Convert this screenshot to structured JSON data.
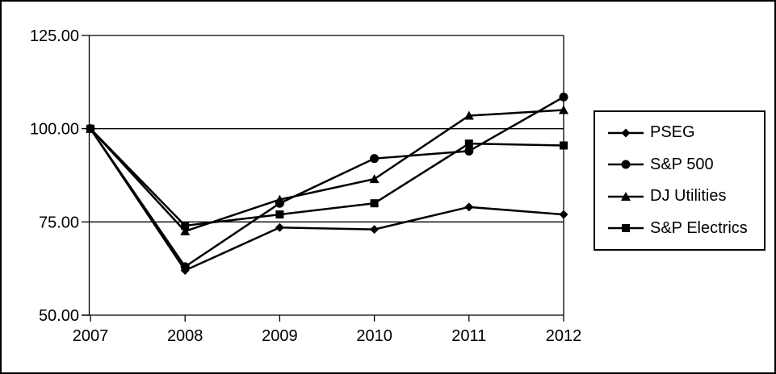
{
  "chart_data": {
    "type": "line",
    "title": "",
    "xlabel": "",
    "ylabel": "",
    "x_tick_labels": [
      "2007",
      "2008",
      "2009",
      "2010",
      "2011",
      "2012"
    ],
    "y_tick_labels": [
      {
        "value": 125,
        "label": "125.00"
      },
      {
        "value": 100,
        "label": "100.00"
      },
      {
        "value": 75,
        "label": "75.00"
      },
      {
        "value": 50,
        "label": "50.00"
      }
    ],
    "ylim": [
      50,
      125
    ],
    "gridline_values": [
      125,
      100,
      75
    ],
    "grid": "horizontal",
    "legend_position": "right-outside",
    "line_color": "#000000",
    "background_color": "#ffffff",
    "series": [
      {
        "name": "PSEG",
        "marker": "diamond",
        "values": [
          100,
          62,
          73.5,
          73,
          79,
          77
        ]
      },
      {
        "name": "S&P 500",
        "marker": "circle",
        "values": [
          100,
          63,
          80,
          92,
          94,
          108.5
        ]
      },
      {
        "name": "DJ Utilities",
        "marker": "triangle",
        "values": [
          100,
          72.5,
          81,
          86.5,
          103.5,
          105
        ]
      },
      {
        "name": "S&P Electrics",
        "marker": "square",
        "values": [
          100,
          74,
          77,
          80,
          96,
          95.5
        ]
      }
    ]
  }
}
